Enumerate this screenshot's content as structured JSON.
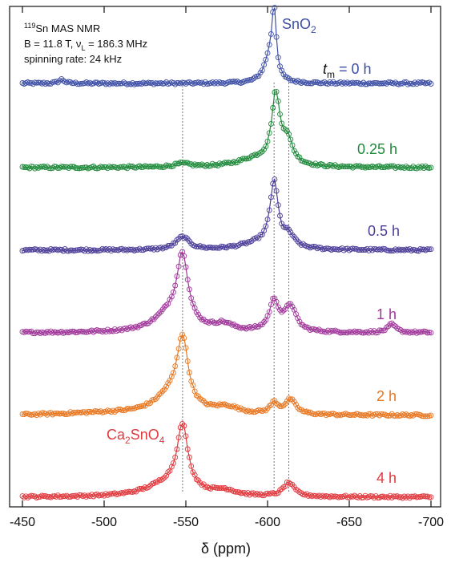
{
  "info": {
    "line1_super": "119",
    "line1_text": "Sn MAS NMR",
    "line2_prefix": "B = 11.8 T, ν",
    "line2_sub": "L",
    "line2_suffix": " = 186.3 MHz",
    "line3": "spinning rate: 24 kHz"
  },
  "compounds": {
    "sno2": {
      "main": "SnO",
      "sub": "2"
    },
    "ca2sno4": {
      "part1": "Ca",
      "sub1": "2",
      "part2": "SnO",
      "sub2": "4"
    }
  },
  "first_label_prefix": {
    "italic": "t",
    "sub": "m",
    "rest": " = 0 h"
  },
  "chart_data": {
    "type": "line",
    "xlabel": "δ (ppm)",
    "xlim": [
      -450,
      -700
    ],
    "x_ticks": [
      -450,
      -500,
      -550,
      -600,
      -650,
      -700
    ],
    "x_tick_labels": [
      "-450",
      "-500",
      "-550",
      "-600",
      "-650",
      "-700"
    ],
    "y_ticks_visible": false,
    "reference_lines_ppm": [
      -548,
      -604,
      -613
    ],
    "series": [
      {
        "name": "0 h",
        "color": "#3d4ea6",
        "peaks": [
          {
            "ppm": -604,
            "height": 1.0,
            "width": 1.6
          },
          {
            "ppm": -601,
            "height": 0.35,
            "width": 4
          },
          {
            "ppm": -474,
            "height": 0.06,
            "width": 2
          }
        ]
      },
      {
        "name": "0.25 h",
        "color": "#1f8a3b",
        "peaks": [
          {
            "ppm": -605,
            "height": 1.0,
            "width": 3
          },
          {
            "ppm": -612,
            "height": 0.35,
            "width": 4
          },
          {
            "ppm": -593,
            "height": 0.12,
            "width": 14
          },
          {
            "ppm": -548,
            "height": 0.05,
            "width": 6
          }
        ]
      },
      {
        "name": "0.5 h",
        "color": "#4a3d98",
        "peaks": [
          {
            "ppm": -604,
            "height": 1.0,
            "width": 3
          },
          {
            "ppm": -548,
            "height": 0.2,
            "width": 5
          },
          {
            "ppm": -613,
            "height": 0.18,
            "width": 4
          },
          {
            "ppm": -595,
            "height": 0.1,
            "width": 14
          }
        ]
      },
      {
        "name": "1 h",
        "color": "#a0369a",
        "peaks": [
          {
            "ppm": -548,
            "height": 1.0,
            "width": 4
          },
          {
            "ppm": -541,
            "height": 0.28,
            "width": 12
          },
          {
            "ppm": -604,
            "height": 0.45,
            "width": 3.5
          },
          {
            "ppm": -614,
            "height": 0.38,
            "width": 4
          },
          {
            "ppm": -573,
            "height": 0.1,
            "width": 7
          },
          {
            "ppm": -676,
            "height": 0.12,
            "width": 3
          }
        ]
      },
      {
        "name": "2 h",
        "color": "#e87722",
        "peaks": [
          {
            "ppm": -548,
            "height": 1.0,
            "width": 4
          },
          {
            "ppm": -541,
            "height": 0.3,
            "width": 12
          },
          {
            "ppm": -604,
            "height": 0.16,
            "width": 3
          },
          {
            "ppm": -614,
            "height": 0.22,
            "width": 4
          },
          {
            "ppm": -575,
            "height": 0.1,
            "width": 9
          },
          {
            "ppm": -500,
            "height": 0.03,
            "width": 30
          }
        ]
      },
      {
        "name": "4 h",
        "color": "#e0393e",
        "peaks": [
          {
            "ppm": -548,
            "height": 1.0,
            "width": 4
          },
          {
            "ppm": -540,
            "height": 0.22,
            "width": 16
          },
          {
            "ppm": -613,
            "height": 0.22,
            "width": 4
          },
          {
            "ppm": -574,
            "height": 0.08,
            "width": 8
          }
        ]
      }
    ]
  }
}
